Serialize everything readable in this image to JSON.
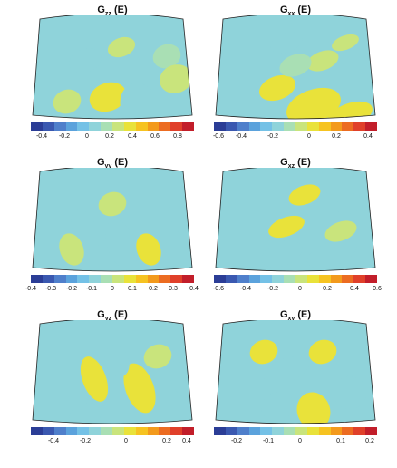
{
  "panels": [
    {
      "title_main": "G",
      "title_sub": "zz",
      "title_tail": "(E)",
      "ticks": [
        "-0.4",
        "-0.2",
        "0",
        "0.2",
        "0.4",
        "0.6",
        "0.8"
      ]
    },
    {
      "title_main": "G",
      "title_sub": "xx",
      "title_tail": "(E)",
      "ticks": [
        "-0.6",
        "-0.4",
        "-0.2",
        "0",
        "0.2",
        "0.4"
      ]
    },
    {
      "title_main": "G",
      "title_sub": "yy",
      "title_tail": "(E)",
      "ticks": [
        "-0.4",
        "-0.3",
        "-0.2",
        "-0.1",
        "0",
        "0.1",
        "0.2",
        "0.3",
        "0.4"
      ]
    },
    {
      "title_main": "G",
      "title_sub": "xz",
      "title_tail": "(E)",
      "ticks": [
        "-0.6",
        "-0.4",
        "-0.2",
        "0",
        "0.2",
        "0.4",
        "0.6"
      ]
    },
    {
      "title_main": "G",
      "title_sub": "yz",
      "title_tail": "(E)",
      "ticks": [
        "-0.4",
        "-0.2",
        "0",
        "0.2",
        "0.4"
      ]
    },
    {
      "title_main": "G",
      "title_sub": "xy",
      "title_tail": "(E)",
      "ticks": [
        "-0.2",
        "-0.1",
        "0",
        "0.1",
        "0.2"
      ]
    }
  ],
  "colorscale": [
    "#2b3d96",
    "#3a58b0",
    "#4f7fcb",
    "#5ba2dc",
    "#74c1e6",
    "#8fd3da",
    "#a9dfb4",
    "#c9e47c",
    "#e9e23a",
    "#f6c321",
    "#f39a1c",
    "#ec6c22",
    "#e0402a",
    "#c21e2a"
  ]
}
